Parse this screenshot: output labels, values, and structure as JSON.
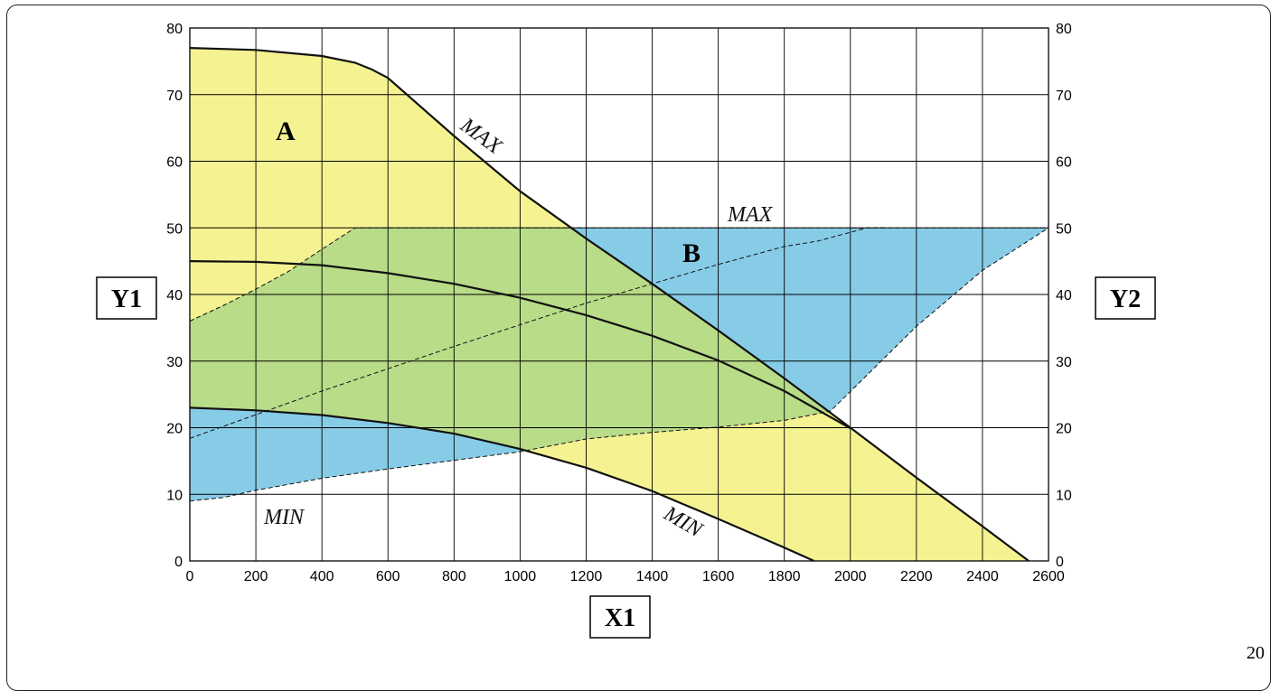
{
  "page_number": "20",
  "chart_data": {
    "type": "line",
    "xlabel": "X1",
    "ylabel": "Y1",
    "y2label": "Y2",
    "xlim": [
      0,
      2600
    ],
    "ylim": [
      0,
      80
    ],
    "y2lim": [
      0,
      80
    ],
    "x_ticks": [
      0,
      200,
      400,
      600,
      800,
      1000,
      1200,
      1400,
      1600,
      1800,
      2000,
      2200,
      2400,
      2600
    ],
    "y_ticks": [
      0,
      10,
      20,
      30,
      40,
      50,
      60,
      70,
      80
    ],
    "grid": true,
    "colors": {
      "yellow": "#f5f391",
      "blue": "#87cce7",
      "green": "#b8dc88",
      "line": "#111111"
    },
    "series": [
      {
        "label": "MAX",
        "axis": "Y1",
        "style": "solid",
        "x": [
          0,
          200,
          400,
          500,
          550,
          600,
          800,
          1000,
          1200,
          1400,
          1600,
          1800,
          2000,
          2200,
          2400,
          2540
        ],
        "y": [
          77,
          76.7,
          75.8,
          74.8,
          73.8,
          72.5,
          63.8,
          55.5,
          48.4,
          41.6,
          34.6,
          27.4,
          20,
          12.5,
          5.2,
          0
        ]
      },
      {
        "axis": "Y1",
        "style": "solid",
        "x": [
          0,
          200,
          400,
          600,
          800,
          1000,
          1200,
          1400,
          1600,
          1800,
          2000
        ],
        "y": [
          45,
          44.9,
          44.4,
          43.2,
          41.6,
          39.5,
          36.9,
          33.8,
          30.1,
          25.5,
          19.9
        ]
      },
      {
        "label": "MIN",
        "axis": "Y1",
        "style": "solid",
        "x": [
          0,
          200,
          400,
          600,
          800,
          1000,
          1200,
          1400,
          1600,
          1800,
          1890
        ],
        "y": [
          23,
          22.6,
          21.9,
          20.7,
          19.1,
          16.8,
          14,
          10.5,
          6.3,
          2,
          0
        ]
      },
      {
        "label": "MAX",
        "axis": "Y2",
        "style": "dashed",
        "x": [
          0,
          100,
          200,
          300,
          400,
          500,
          2600
        ],
        "y": [
          36,
          38.3,
          40.8,
          43.5,
          46.8,
          50,
          50
        ]
      },
      {
        "axis": "Y2",
        "style": "dashed",
        "x": [
          0,
          400,
          800,
          1200,
          1600,
          1800,
          1900,
          2050,
          2100
        ],
        "y": [
          18.4,
          25.5,
          32.2,
          38.7,
          44.5,
          47.2,
          48,
          50,
          50
        ]
      },
      {
        "label": "MIN",
        "axis": "Y2",
        "style": "dashed",
        "x": [
          0,
          100,
          200,
          400,
          600,
          800,
          1000,
          1200,
          1400,
          1600,
          1800,
          1940,
          2200,
          2400,
          2600
        ],
        "y": [
          9,
          9.5,
          10.6,
          12.4,
          13.8,
          15.1,
          16.4,
          18.3,
          19.3,
          20.1,
          21.1,
          22.5,
          35.2,
          43.6,
          50
        ]
      }
    ],
    "regions": [
      {
        "label": "A",
        "color": "yellow"
      },
      {
        "label": "B",
        "color": "blue"
      }
    ],
    "curve_labels": [
      "MAX",
      "MAX",
      "MIN",
      "MIN"
    ]
  }
}
